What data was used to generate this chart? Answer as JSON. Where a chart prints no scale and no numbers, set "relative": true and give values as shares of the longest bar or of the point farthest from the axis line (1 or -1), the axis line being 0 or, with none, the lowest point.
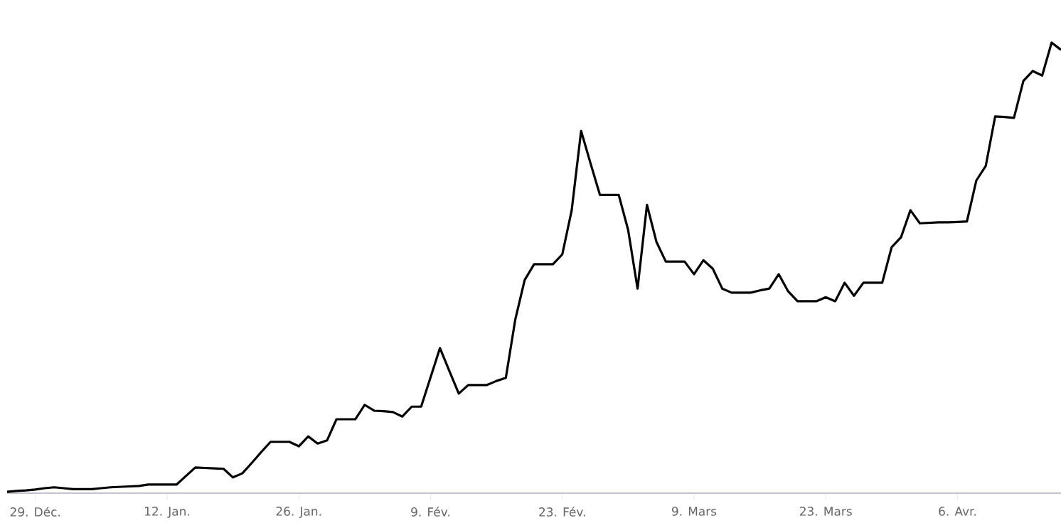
{
  "chart_data": {
    "type": "line",
    "relative": true,
    "categories": [
      null,
      null,
      null,
      "29. Déc.",
      null,
      null,
      null,
      null,
      null,
      null,
      null,
      null,
      null,
      null,
      null,
      null,
      null,
      "12. Jan.",
      null,
      null,
      null,
      null,
      null,
      null,
      null,
      null,
      null,
      null,
      null,
      null,
      null,
      "26. Jan.",
      null,
      null,
      null,
      null,
      null,
      null,
      null,
      null,
      null,
      null,
      null,
      null,
      null,
      "9. Fév.",
      null,
      null,
      null,
      null,
      null,
      null,
      null,
      null,
      null,
      null,
      null,
      null,
      null,
      "23. Fév.",
      null,
      null,
      null,
      null,
      null,
      null,
      null,
      null,
      null,
      null,
      null,
      null,
      null,
      "9. Mars",
      null,
      null,
      null,
      null,
      null,
      null,
      null,
      null,
      null,
      null,
      null,
      null,
      null,
      "23. Mars",
      null,
      null,
      null,
      null,
      null,
      null,
      null,
      null,
      null,
      null,
      null,
      null,
      null,
      "6. Avr.",
      null,
      null,
      null,
      null,
      null,
      null,
      null,
      null,
      null,
      null,
      null
    ],
    "series": [
      {
        "color": "#000000",
        "values": [
          0.003,
          0.005,
          0.006,
          0.008,
          0.011,
          0.013,
          0.011,
          0.009,
          0.009,
          0.009,
          0.011,
          0.013,
          0.014,
          0.015,
          0.016,
          0.019,
          0.019,
          0.019,
          0.019,
          0.038,
          0.057,
          0.056,
          0.055,
          0.054,
          0.035,
          0.044,
          0.067,
          0.091,
          0.114,
          0.114,
          0.114,
          0.104,
          0.126,
          0.11,
          0.117,
          0.164,
          0.164,
          0.164,
          0.196,
          0.183,
          0.182,
          0.18,
          0.17,
          0.192,
          0.192,
          0.257,
          0.322,
          0.271,
          0.221,
          0.24,
          0.24,
          0.24,
          0.249,
          0.256,
          0.385,
          0.473,
          0.508,
          0.508,
          0.508,
          0.53,
          0.628,
          0.804,
          0.732,
          0.662,
          0.662,
          0.662,
          0.584,
          0.454,
          0.64,
          0.558,
          0.514,
          0.514,
          0.514,
          0.486,
          0.517,
          0.498,
          0.454,
          0.445,
          0.445,
          0.445,
          0.45,
          0.454,
          0.486,
          0.448,
          0.426,
          0.426,
          0.426,
          0.435,
          0.426,
          0.467,
          0.438,
          0.467,
          0.467,
          0.467,
          0.546,
          0.568,
          0.628,
          0.599,
          0.6,
          0.601,
          0.601,
          0.602,
          0.603,
          0.694,
          0.726,
          0.836,
          0.835,
          0.833,
          0.915,
          0.937,
          0.927,
          1.0,
          0.984
        ]
      }
    ]
  }
}
